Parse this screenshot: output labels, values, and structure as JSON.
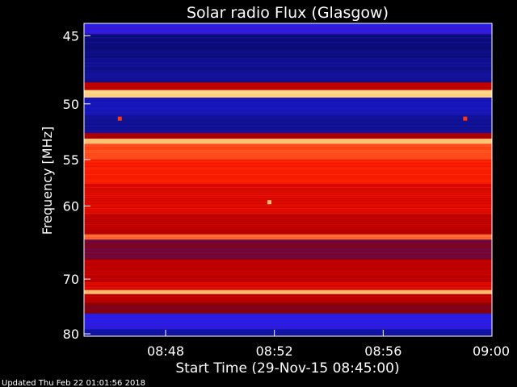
{
  "chart_data": {
    "type": "heatmap",
    "title": "Solar radio Flux (Glasgow)",
    "xlabel": "Start Time (29-Nov-15 08:45:00)",
    "ylabel": "Frequency [MHz]",
    "x_ticks": [
      "08:48",
      "08:52",
      "08:56",
      "09:00"
    ],
    "x_tick_minutes": [
      3,
      7,
      11,
      15
    ],
    "x_range_minutes": [
      0,
      15
    ],
    "y_ticks": [
      45,
      50,
      55,
      60,
      70,
      80
    ],
    "y_range_mhz": [
      44.2,
      80.5
    ],
    "y_scale": "reciprocal",
    "colormap": [
      "#000040",
      "#10108a",
      "#2020ff",
      "#8a0000",
      "#c80000",
      "#ff2000",
      "#ff8040",
      "#ffe090"
    ],
    "bands": [
      {
        "from": 44.2,
        "to": 44.9,
        "level": 0.3
      },
      {
        "from": 44.9,
        "to": 46.5,
        "level": 0.12
      },
      {
        "from": 46.5,
        "to": 48.3,
        "level": 0.15
      },
      {
        "from": 48.3,
        "to": 48.9,
        "level": 0.55
      },
      {
        "from": 48.9,
        "to": 49.5,
        "level": 0.98
      },
      {
        "from": 49.5,
        "to": 51.0,
        "level": 0.2
      },
      {
        "from": 51.0,
        "to": 52.5,
        "level": 0.16
      },
      {
        "from": 52.5,
        "to": 53.0,
        "level": 0.5
      },
      {
        "from": 53.0,
        "to": 53.5,
        "level": 0.95
      },
      {
        "from": 53.5,
        "to": 55.0,
        "level": 0.78
      },
      {
        "from": 55.0,
        "to": 57.5,
        "level": 0.7
      },
      {
        "from": 57.5,
        "to": 61.0,
        "level": 0.62
      },
      {
        "from": 61.0,
        "to": 63.5,
        "level": 0.55
      },
      {
        "from": 63.5,
        "to": 64.2,
        "level": 0.82
      },
      {
        "from": 64.2,
        "to": 67.0,
        "level": 0.4
      },
      {
        "from": 67.0,
        "to": 70.5,
        "level": 0.55
      },
      {
        "from": 70.5,
        "to": 71.8,
        "level": 0.62
      },
      {
        "from": 71.8,
        "to": 72.5,
        "level": 0.93
      },
      {
        "from": 72.5,
        "to": 74.0,
        "level": 0.55
      },
      {
        "from": 74.0,
        "to": 76.0,
        "level": 0.42
      },
      {
        "from": 76.0,
        "to": 79.0,
        "level": 0.3
      },
      {
        "from": 79.0,
        "to": 80.5,
        "level": 0.18
      }
    ],
    "spots": [
      {
        "minute": 6.8,
        "mhz": 59.5,
        "level": 0.95
      },
      {
        "minute": 1.3,
        "mhz": 51.2,
        "level": 0.75
      },
      {
        "minute": 14.0,
        "mhz": 51.2,
        "level": 0.75
      }
    ]
  },
  "footer": {
    "updated": "Updated Thu Feb 22 01:01:56 2018"
  }
}
